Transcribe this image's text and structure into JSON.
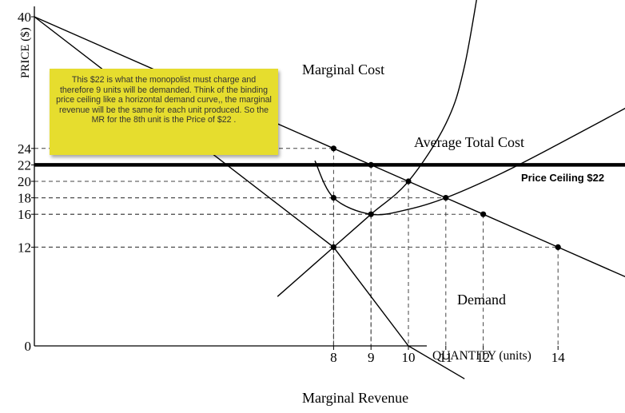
{
  "chart_data": {
    "type": "line",
    "ylabel": "PRICE ($)",
    "xlabel": "QUANTITY (units)",
    "x_ticks": [
      0,
      8,
      9,
      10,
      11,
      12,
      14
    ],
    "y_ticks": [
      0,
      12,
      16,
      18,
      20,
      22,
      24,
      40
    ],
    "series": [
      {
        "name": "Demand",
        "points": [
          [
            0,
            40
          ],
          [
            8,
            24
          ],
          [
            9,
            22
          ],
          [
            10,
            20
          ],
          [
            11,
            18
          ],
          [
            12,
            16
          ],
          [
            14,
            12
          ],
          [
            16.5,
            7
          ]
        ]
      },
      {
        "name": "Marginal Revenue",
        "points": [
          [
            0,
            40
          ],
          [
            8,
            12
          ],
          [
            10,
            0
          ],
          [
            11.5,
            -4
          ]
        ]
      },
      {
        "name": "Marginal Cost",
        "points": [
          [
            6.5,
            6
          ],
          [
            8,
            12
          ],
          [
            9,
            16
          ],
          [
            10,
            20
          ],
          [
            11,
            27
          ],
          [
            11.5,
            34
          ],
          [
            12,
            47
          ]
        ]
      },
      {
        "name": "Average Total Cost",
        "points": [
          [
            7.5,
            22.5
          ],
          [
            8,
            18
          ],
          [
            9,
            16
          ],
          [
            10,
            16.6
          ],
          [
            11,
            18
          ],
          [
            12.5,
            21
          ],
          [
            14,
            24.5
          ],
          [
            16.5,
            30.6
          ]
        ]
      },
      {
        "name": "Price Ceiling $22",
        "points": [
          [
            0,
            22
          ],
          [
            20.7,
            22
          ]
        ]
      }
    ],
    "marked_points": [
      [
        8,
        24
      ],
      [
        9,
        22
      ],
      [
        10,
        20
      ],
      [
        11,
        18
      ],
      [
        12,
        16
      ],
      [
        14,
        12
      ],
      [
        8,
        18
      ],
      [
        9,
        16
      ],
      [
        8,
        12
      ]
    ],
    "annotation": "This $22 is what the monopolist must charge and therefore 9 units will be demanded. Think of the binding price ceiling like a horizontal demand curve,, the marginal revenue will be the same for each unit produced. So the MR for the 8th unit is the Price of $22 ."
  },
  "colors": {
    "note_background": "#e6dd2e",
    "lines": "#000000"
  }
}
